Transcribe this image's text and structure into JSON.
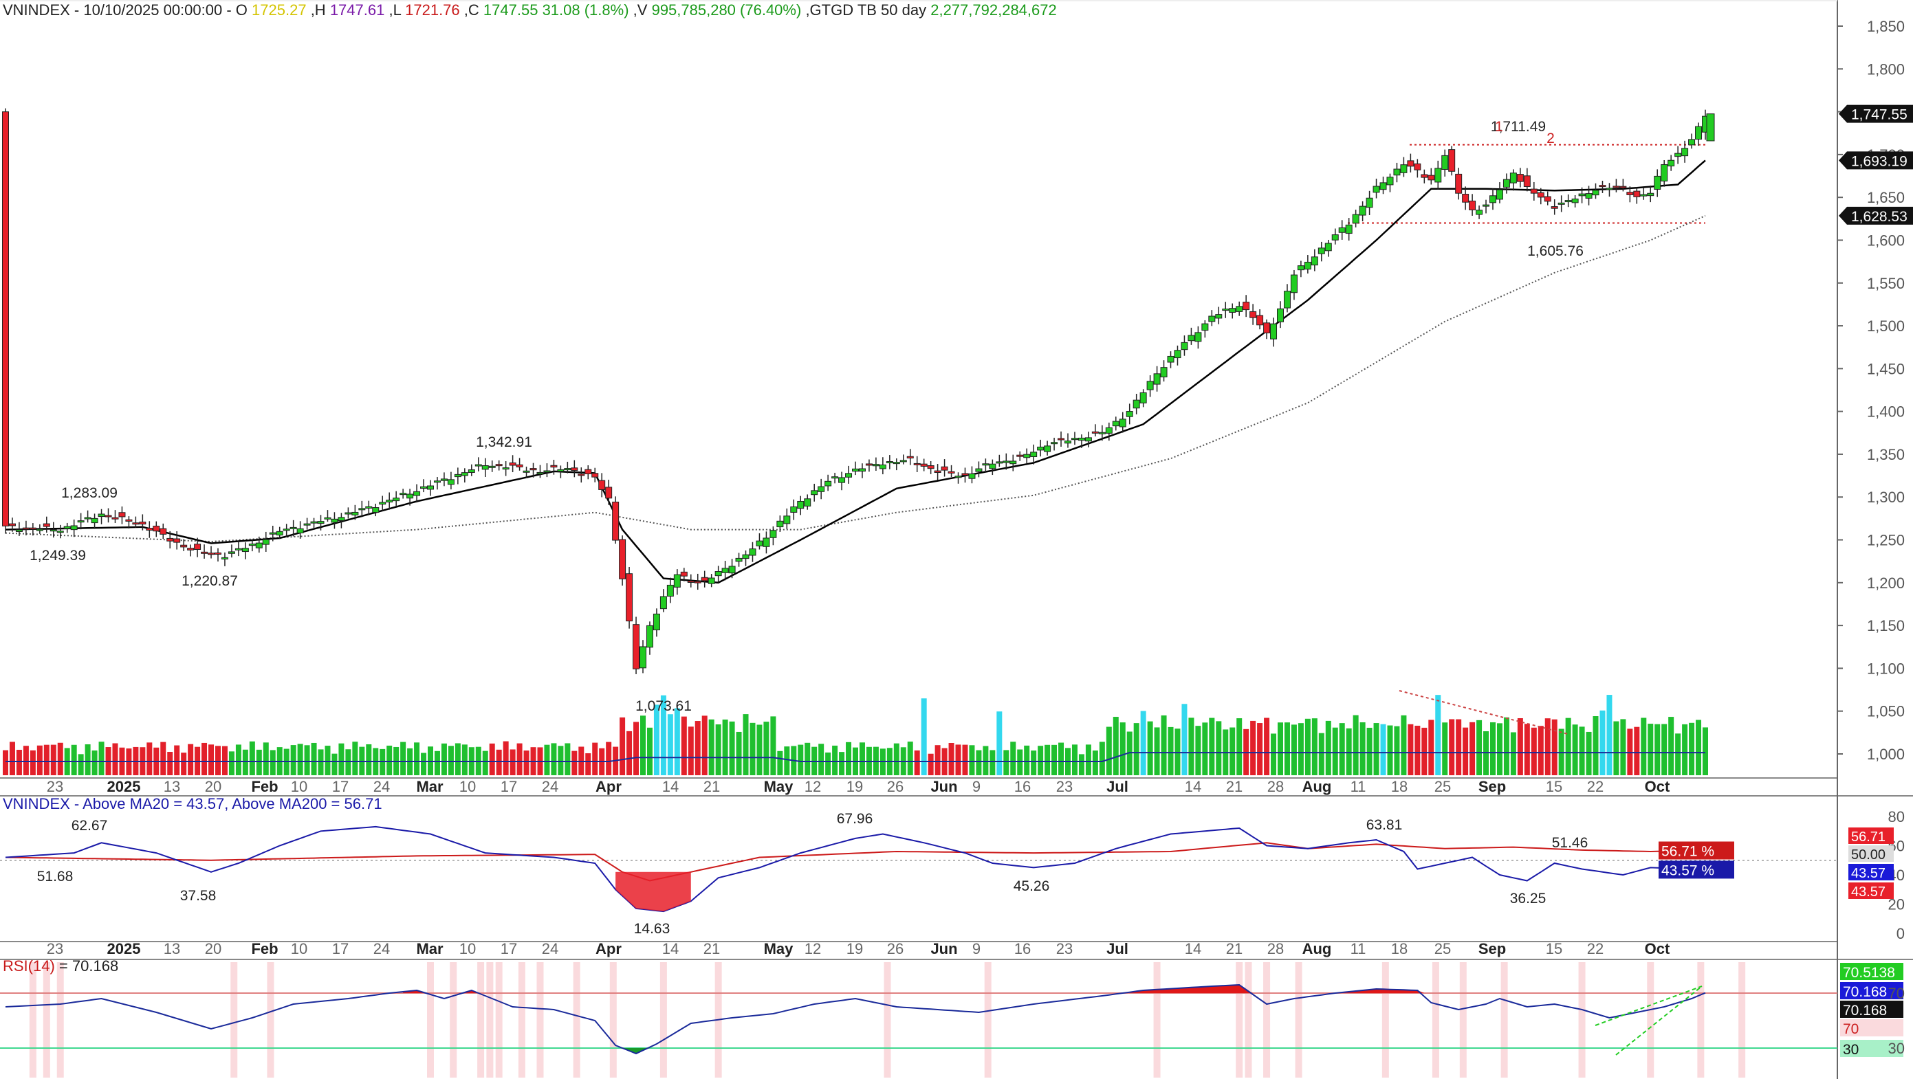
{
  "header": {
    "symbol": "VNINDEX",
    "date": "10/10/2025 00:00:00",
    "open_label": "O",
    "open": "1725.27",
    "high_label": ",H",
    "high": "1747.61",
    "low_label": ",L",
    "low": "1721.76",
    "close_label": ",C",
    "close": "1747.55",
    "change": "31.08 (1.8%)",
    "volume_label": ",V",
    "volume": "995,785,280 (76.40%)",
    "gtgd": ",GTGD TB 50 day",
    "gtgd_value": "2,277,792,284,672"
  },
  "colors": {
    "up": "#22cc22",
    "down": "#e8202a",
    "volume_up": "#1fbf2f",
    "volume_down": "#e2202a",
    "volume_spike": "#33d8ee",
    "ma_fast": "#000000",
    "ma_slow": "#555555",
    "breadth_ma20": "#1a1aa8",
    "breadth_ma200": "#cc1a1a",
    "rsi": "#1a2a9a",
    "rsi_overbought": "#e01818",
    "rsi_oversold": "#1a9a2a",
    "highlight_band": "#fadadd"
  },
  "chart_data": [
    {
      "type": "candlestick",
      "title": "VNINDEX",
      "y_range": [
        1000,
        1850
      ],
      "y_ticks": [
        "1,850",
        "1,800",
        "1,750",
        "1,700",
        "1,650",
        "1,600",
        "1,550",
        "1,500",
        "1,450",
        "1,400",
        "1,350",
        "1,300",
        "1,250",
        "1,200",
        "1,150",
        "1,100",
        "1,050",
        "1,000"
      ],
      "x_tick_labels": [
        "23",
        "2025",
        "13",
        "20",
        "Feb",
        "10",
        "17",
        "24",
        "Mar",
        "10",
        "17",
        "24",
        "Apr",
        "14",
        "21",
        "May",
        "12",
        "19",
        "26",
        "Jun",
        "9",
        "16",
        "23",
        "Jul",
        "14",
        "21",
        "28",
        "Aug",
        "11",
        "18",
        "25",
        "Sep",
        "15",
        "22",
        "Oct"
      ],
      "annotations": [
        "1,283.09",
        "1,249.39",
        "1,220.87",
        "1,342.91",
        "1,073.61",
        "1,711.49",
        "1,605.76",
        "1",
        "2"
      ],
      "price_tags": [
        "1,747.55",
        "1,693.19",
        "1,628.53"
      ],
      "resistance": 1711.49,
      "support": 1620,
      "close_path": [
        [
          0,
          1265
        ],
        [
          8,
          1262
        ],
        [
          14,
          1280
        ],
        [
          20,
          1268
        ],
        [
          24,
          1250
        ],
        [
          28,
          1236
        ],
        [
          32,
          1232
        ],
        [
          36,
          1244
        ],
        [
          40,
          1260
        ],
        [
          44,
          1268
        ],
        [
          50,
          1280
        ],
        [
          56,
          1296
        ],
        [
          62,
          1314
        ],
        [
          66,
          1326
        ],
        [
          70,
          1338
        ],
        [
          74,
          1335
        ],
        [
          78,
          1330
        ],
        [
          82,
          1334
        ],
        [
          86,
          1322
        ],
        [
          88,
          1298
        ],
        [
          90,
          1205
        ],
        [
          92,
          1100
        ],
        [
          94,
          1150
        ],
        [
          96,
          1182
        ],
        [
          98,
          1210
        ],
        [
          100,
          1203
        ],
        [
          102,
          1200
        ],
        [
          104,
          1212
        ],
        [
          108,
          1232
        ],
        [
          112,
          1262
        ],
        [
          116,
          1295
        ],
        [
          120,
          1318
        ],
        [
          124,
          1332
        ],
        [
          128,
          1340
        ],
        [
          132,
          1343
        ],
        [
          136,
          1330
        ],
        [
          140,
          1325
        ],
        [
          144,
          1340
        ],
        [
          148,
          1345
        ],
        [
          152,
          1362
        ],
        [
          156,
          1368
        ],
        [
          160,
          1375
        ],
        [
          164,
          1400
        ],
        [
          168,
          1445
        ],
        [
          172,
          1480
        ],
        [
          176,
          1510
        ],
        [
          180,
          1525
        ],
        [
          182,
          1510
        ],
        [
          184,
          1490
        ],
        [
          186,
          1520
        ],
        [
          188,
          1560
        ],
        [
          192,
          1590
        ],
        [
          196,
          1620
        ],
        [
          200,
          1660
        ],
        [
          204,
          1690
        ],
        [
          208,
          1670
        ],
        [
          210,
          1700
        ],
        [
          212,
          1655
        ],
        [
          214,
          1635
        ],
        [
          216,
          1640
        ],
        [
          218,
          1660
        ],
        [
          220,
          1680
        ],
        [
          222,
          1660
        ],
        [
          224,
          1650
        ],
        [
          226,
          1640
        ],
        [
          228,
          1645
        ],
        [
          232,
          1660
        ],
        [
          236,
          1662
        ],
        [
          238,
          1650
        ],
        [
          240,
          1655
        ],
        [
          242,
          1690
        ],
        [
          244,
          1700
        ],
        [
          246,
          1716
        ],
        [
          248,
          1747.55
        ]
      ],
      "ma_fast_path": [
        [
          0,
          1262
        ],
        [
          20,
          1265
        ],
        [
          30,
          1246
        ],
        [
          40,
          1252
        ],
        [
          60,
          1295
        ],
        [
          80,
          1330
        ],
        [
          86,
          1328
        ],
        [
          90,
          1262
        ],
        [
          96,
          1205
        ],
        [
          104,
          1200
        ],
        [
          116,
          1250
        ],
        [
          130,
          1310
        ],
        [
          150,
          1340
        ],
        [
          166,
          1385
        ],
        [
          180,
          1470
        ],
        [
          190,
          1530
        ],
        [
          200,
          1600
        ],
        [
          208,
          1660
        ],
        [
          216,
          1660
        ],
        [
          226,
          1658
        ],
        [
          236,
          1660
        ],
        [
          244,
          1665
        ],
        [
          248,
          1693.19
        ]
      ],
      "ma_slow_path": [
        [
          0,
          1258
        ],
        [
          30,
          1248
        ],
        [
          60,
          1262
        ],
        [
          86,
          1282
        ],
        [
          100,
          1262
        ],
        [
          116,
          1262
        ],
        [
          130,
          1282
        ],
        [
          150,
          1302
        ],
        [
          170,
          1345
        ],
        [
          190,
          1410
        ],
        [
          210,
          1505
        ],
        [
          226,
          1562
        ],
        [
          240,
          1600
        ],
        [
          248,
          1628.53
        ]
      ]
    },
    {
      "type": "bar",
      "title": "Volume",
      "notes": "relative volume bars under price; red dotted divergence trendline Aug–Sep"
    },
    {
      "type": "line",
      "title": "VNINDEX - Above MA20 = 43.57, Above MA200 = 56.71",
      "y_ticks": [
        "80",
        "60",
        "40",
        "20",
        "0"
      ],
      "series": [
        {
          "name": "Above MA20",
          "last": "43.57",
          "label": "43.57 %"
        },
        {
          "name": "Above MA200",
          "last": "56.71",
          "label": "56.71 %"
        }
      ],
      "annotations": [
        "62.67",
        "51.68",
        "37.58",
        "14.63",
        "67.96",
        "45.26",
        "63.81",
        "51.46",
        "36.25"
      ],
      "side_tags": [
        "56.71",
        "50.00",
        "43.57",
        "43.57"
      ]
    },
    {
      "type": "line",
      "title": "RSI(14)",
      "title_value": "70.168",
      "y_ticks": [
        "70",
        "30"
      ],
      "overbought": 70,
      "oversold": 30,
      "side_tags": [
        "70.5138",
        "70.168",
        "70.168",
        "70",
        "30"
      ]
    }
  ]
}
